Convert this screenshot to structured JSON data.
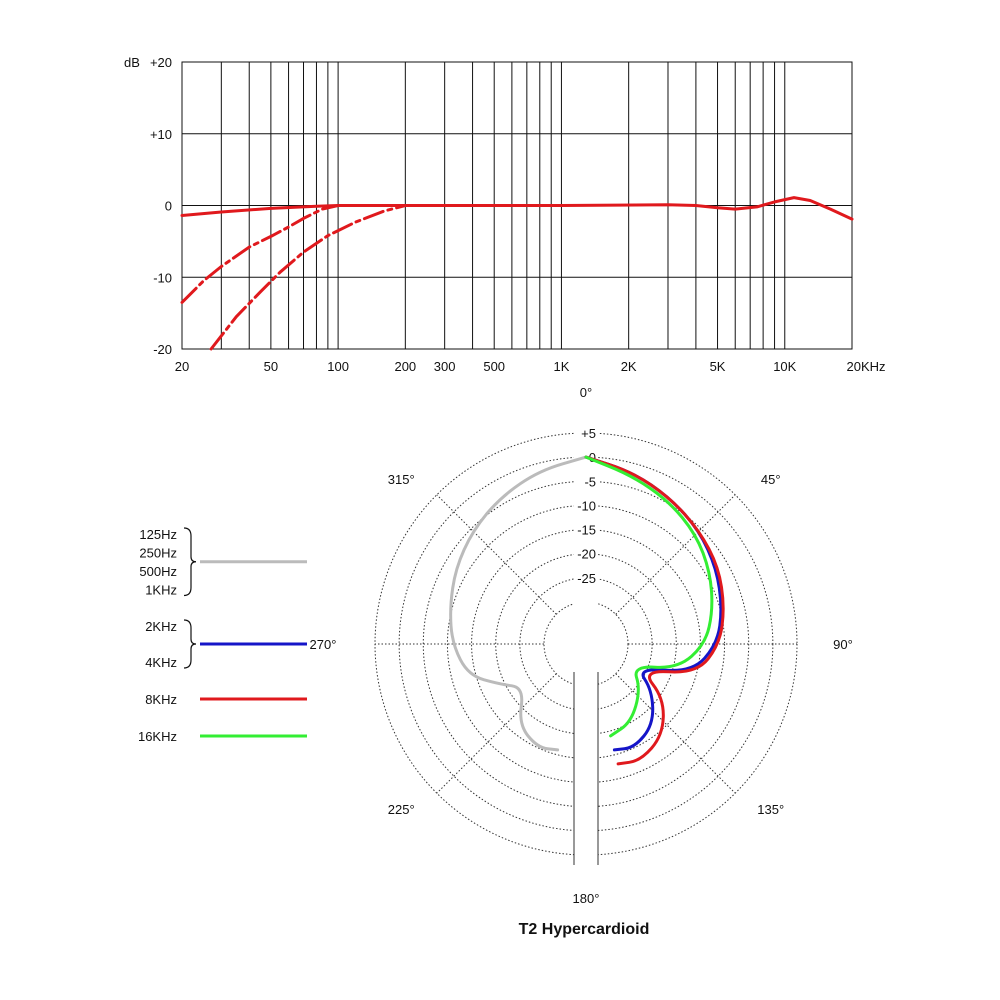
{
  "chart_data": [
    {
      "type": "line",
      "yunit": "dB",
      "xscale": "log",
      "xlim": [
        20,
        20000
      ],
      "ylim": [
        -20,
        20
      ],
      "grid": true,
      "y_ticks": [
        {
          "value": 20,
          "label": "+20"
        },
        {
          "value": 10,
          "label": "+10"
        },
        {
          "value": 0,
          "label": "0"
        },
        {
          "value": -10,
          "label": "-10"
        },
        {
          "value": -20,
          "label": "-20"
        }
      ],
      "x_ticks": [
        {
          "value": 20,
          "label": "20"
        },
        {
          "value": 50,
          "label": "50"
        },
        {
          "value": 100,
          "label": "100"
        },
        {
          "value": 200,
          "label": "200"
        },
        {
          "value": 300,
          "label": "300"
        },
        {
          "value": 500,
          "label": "500"
        },
        {
          "value": 1000,
          "label": "1K"
        },
        {
          "value": 2000,
          "label": "2K"
        },
        {
          "value": 5000,
          "label": "5K"
        },
        {
          "value": 10000,
          "label": "10K"
        },
        {
          "value": 20000,
          "label": "20KHz"
        }
      ],
      "series": [
        {
          "style": "solid",
          "color": "#e0191d",
          "points": [
            [
              20,
              -1.4
            ],
            [
              30,
              -0.9
            ],
            [
              50,
              -0.4
            ],
            [
              80,
              -0.1
            ],
            [
              100,
              0
            ],
            [
              1000,
              0
            ],
            [
              3000,
              0.1
            ],
            [
              4000,
              0
            ],
            [
              5000,
              -0.3
            ],
            [
              6000,
              -0.5
            ],
            [
              7500,
              -0.2
            ],
            [
              9000,
              0.5
            ],
            [
              11000,
              1.1
            ],
            [
              13000,
              0.7
            ],
            [
              16000,
              -0.5
            ],
            [
              20000,
              -1.9
            ]
          ]
        },
        {
          "style": "dashed",
          "color": "#e0191d",
          "points": [
            [
              20,
              -13.5
            ],
            [
              25,
              -10.5
            ],
            [
              30,
              -8.5
            ],
            [
              40,
              -5.8
            ],
            [
              50,
              -4.3
            ],
            [
              60,
              -3
            ],
            [
              70,
              -1.8
            ],
            [
              85,
              -0.5
            ],
            [
              100,
              0
            ]
          ]
        },
        {
          "style": "dashed",
          "color": "#e0191d",
          "points": [
            [
              27,
              -20
            ],
            [
              35,
              -15.5
            ],
            [
              45,
              -12
            ],
            [
              55,
              -9.3
            ],
            [
              70,
              -6.5
            ],
            [
              90,
              -4.2
            ],
            [
              120,
              -2.3
            ],
            [
              160,
              -0.8
            ],
            [
              200,
              0
            ]
          ]
        }
      ]
    },
    {
      "type": "polar",
      "title": "T2  Hypercardioid",
      "angle_labels": [
        {
          "deg": 0,
          "label": "0°"
        },
        {
          "deg": 45,
          "label": "45°"
        },
        {
          "deg": 90,
          "label": "90°"
        },
        {
          "deg": 135,
          "label": "135°"
        },
        {
          "deg": 180,
          "label": "180°"
        },
        {
          "deg": 225,
          "label": "225°"
        },
        {
          "deg": 270,
          "label": "270°"
        },
        {
          "deg": 315,
          "label": "315°"
        }
      ],
      "radial_ticks": [
        "+5",
        "0",
        "-5",
        "-10",
        "-15",
        "-20",
        "-25"
      ],
      "rlim": [
        -30,
        5
      ],
      "legend": [
        {
          "labels": [
            "125Hz",
            "250Hz",
            "500Hz",
            "1KHz"
          ],
          "color": "#bbbbbb"
        },
        {
          "labels": [
            "2KHz",
            "4KHz"
          ],
          "color": "#1515c8"
        },
        {
          "labels": [
            "8KHz"
          ],
          "color": "#e0191d"
        },
        {
          "labels": [
            "16KHz"
          ],
          "color": "#33ee33"
        }
      ],
      "series": [
        {
          "color": "#bbbbbb",
          "side": "left",
          "points": [
            [
              0,
              0
            ],
            [
              15,
              -1.5
            ],
            [
              30,
              -3.5
            ],
            [
              45,
              -5.5
            ],
            [
              60,
              -7.5
            ],
            [
              75,
              -9.5
            ],
            [
              90,
              -11
            ],
            [
              105,
              -13.5
            ],
            [
              115,
              -19
            ],
            [
              125,
              -23
            ],
            [
              140,
              -17
            ],
            [
              155,
              -15
            ],
            [
              165,
              -16
            ]
          ]
        },
        {
          "color": "#1515c8",
          "side": "right",
          "points": [
            [
              0,
              0
            ],
            [
              15,
              -1.8
            ],
            [
              30,
              -3.8
            ],
            [
              45,
              -5.5
            ],
            [
              60,
              -7.5
            ],
            [
              75,
              -9.5
            ],
            [
              90,
              -11.5
            ],
            [
              105,
              -16
            ],
            [
              115,
              -27
            ],
            [
              125,
              -22
            ],
            [
              140,
              -17
            ],
            [
              155,
              -15
            ],
            [
              165,
              -16
            ]
          ]
        },
        {
          "color": "#e0191d",
          "side": "right",
          "points": [
            [
              0,
              0
            ],
            [
              15,
              -1.8
            ],
            [
              30,
              -3.8
            ],
            [
              45,
              -5.5
            ],
            [
              60,
              -7
            ],
            [
              75,
              -9
            ],
            [
              90,
              -11
            ],
            [
              105,
              -15
            ],
            [
              115,
              -26
            ],
            [
              125,
              -19
            ],
            [
              140,
              -14
            ],
            [
              155,
              -12
            ],
            [
              165,
              -13
            ]
          ]
        },
        {
          "color": "#33ee33",
          "side": "right",
          "points": [
            [
              0,
              0
            ],
            [
              15,
              -2.5
            ],
            [
              30,
              -4.5
            ],
            [
              45,
              -6.5
            ],
            [
              60,
              -9
            ],
            [
              75,
              -11.5
            ],
            [
              90,
              -14
            ],
            [
              105,
              -19
            ],
            [
              115,
              -28
            ],
            [
              130,
              -24
            ],
            [
              150,
              -20
            ],
            [
              165,
              -19
            ]
          ]
        }
      ]
    }
  ]
}
